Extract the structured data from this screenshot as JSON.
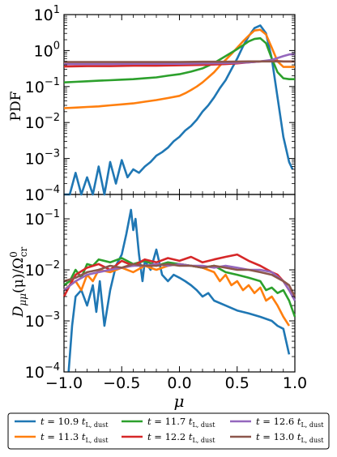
{
  "chart_data": [
    {
      "type": "line",
      "ylabel": "PDF",
      "yscale": "log",
      "xlim": [
        -1.0,
        1.0
      ],
      "ylim": [
        0.0001,
        10
      ],
      "x_ticks": [
        "−1.0",
        "−0.5",
        "0.0",
        "0.5",
        "1.0"
      ],
      "y_ticks": [
        {
          "base": "10",
          "exp": "1"
        },
        {
          "base": "10",
          "exp": "0"
        },
        {
          "base": "10",
          "exp": "-1"
        },
        {
          "base": "10",
          "exp": "-2"
        },
        {
          "base": "10",
          "exp": "-3"
        },
        {
          "base": "10",
          "exp": "-4"
        }
      ],
      "series": [
        {
          "name": "t = 10.9 t_L,dust",
          "color": "#1f77b4",
          "x": [
            -1.0,
            -0.95,
            -0.9,
            -0.85,
            -0.8,
            -0.75,
            -0.7,
            -0.65,
            -0.6,
            -0.55,
            -0.5,
            -0.45,
            -0.4,
            -0.35,
            -0.3,
            -0.25,
            -0.2,
            -0.15,
            -0.1,
            -0.05,
            0.0,
            0.05,
            0.1,
            0.15,
            0.2,
            0.25,
            0.3,
            0.35,
            0.4,
            0.45,
            0.5,
            0.55,
            0.6,
            0.65,
            0.7,
            0.75,
            0.8,
            0.85,
            0.9,
            0.95,
            0.98
          ],
          "y": [
            0.0001,
            0.0001,
            0.0004,
            0.0001,
            0.0003,
            0.0001,
            0.0006,
            0.0001,
            0.0008,
            0.0002,
            0.0009,
            0.0003,
            0.0005,
            0.0004,
            0.0006,
            0.0008,
            0.0012,
            0.0015,
            0.002,
            0.003,
            0.004,
            0.006,
            0.008,
            0.012,
            0.02,
            0.03,
            0.05,
            0.09,
            0.15,
            0.3,
            0.6,
            1.3,
            2.5,
            4.2,
            5.0,
            3.0,
            0.6,
            0.05,
            0.004,
            0.0008,
            0.0005
          ]
        },
        {
          "name": "t = 11.3 t_L,dust",
          "color": "#ff7f0e",
          "x": [
            -1.0,
            -0.9,
            -0.8,
            -0.7,
            -0.6,
            -0.5,
            -0.4,
            -0.3,
            -0.2,
            -0.1,
            0.0,
            0.05,
            0.1,
            0.15,
            0.2,
            0.25,
            0.3,
            0.35,
            0.4,
            0.45,
            0.5,
            0.55,
            0.6,
            0.65,
            0.7,
            0.75,
            0.8,
            0.85,
            0.9,
            0.95,
            1.0
          ],
          "y": [
            0.025,
            0.026,
            0.027,
            0.028,
            0.03,
            0.032,
            0.034,
            0.038,
            0.042,
            0.048,
            0.055,
            0.065,
            0.08,
            0.1,
            0.13,
            0.18,
            0.25,
            0.38,
            0.55,
            0.8,
            1.2,
            1.8,
            2.6,
            3.6,
            3.8,
            2.8,
            1.2,
            0.5,
            0.35,
            0.35,
            0.35
          ]
        },
        {
          "name": "t = 11.7 t_L,dust",
          "color": "#2ca02c",
          "x": [
            -1.0,
            -0.9,
            -0.8,
            -0.7,
            -0.6,
            -0.5,
            -0.4,
            -0.3,
            -0.2,
            -0.1,
            0.0,
            0.1,
            0.2,
            0.3,
            0.4,
            0.5,
            0.55,
            0.6,
            0.65,
            0.7,
            0.75,
            0.8,
            0.85,
            0.9,
            0.95,
            1.0
          ],
          "y": [
            0.13,
            0.135,
            0.14,
            0.145,
            0.15,
            0.155,
            0.16,
            0.17,
            0.18,
            0.2,
            0.22,
            0.26,
            0.32,
            0.45,
            0.7,
            1.1,
            1.4,
            1.8,
            2.1,
            2.2,
            1.6,
            0.6,
            0.25,
            0.17,
            0.16,
            0.16
          ]
        },
        {
          "name": "t = 12.2 t_L,dust",
          "color": "#d62728",
          "x": [
            -1.0,
            -0.8,
            -0.6,
            -0.4,
            -0.2,
            0.0,
            0.2,
            0.4,
            0.5,
            0.6,
            0.7,
            0.8,
            0.9,
            1.0
          ],
          "y": [
            0.36,
            0.37,
            0.37,
            0.38,
            0.38,
            0.39,
            0.4,
            0.42,
            0.44,
            0.47,
            0.5,
            0.52,
            0.5,
            0.5
          ]
        },
        {
          "name": "t = 12.6 t_L,dust",
          "color": "#9467bd",
          "x": [
            -1.0,
            -0.8,
            -0.6,
            -0.4,
            -0.2,
            0.0,
            0.2,
            0.4,
            0.5,
            0.6,
            0.7,
            0.8,
            0.85,
            0.9,
            0.95,
            1.0
          ],
          "y": [
            0.42,
            0.42,
            0.42,
            0.43,
            0.43,
            0.43,
            0.44,
            0.45,
            0.46,
            0.47,
            0.5,
            0.55,
            0.62,
            0.7,
            0.78,
            0.8
          ]
        },
        {
          "name": "t = 13.0 t_L,dust",
          "color": "#8c564b",
          "x": [
            -1.0,
            -0.8,
            -0.6,
            -0.4,
            -0.2,
            0.0,
            0.2,
            0.4,
            0.6,
            0.8,
            1.0
          ],
          "y": [
            0.48,
            0.48,
            0.48,
            0.48,
            0.48,
            0.48,
            0.49,
            0.49,
            0.5,
            0.5,
            0.5
          ]
        }
      ]
    },
    {
      "type": "line",
      "xlabel": "μ",
      "ylabel": "D_μμ(μ)/Ω⁰_cr",
      "yscale": "log",
      "xlim": [
        -1.0,
        1.0
      ],
      "ylim": [
        0.0001,
        0.3
      ],
      "x_ticks": [
        "−1.0",
        "−0.5",
        "0.0",
        "0.5",
        "1.0"
      ],
      "y_ticks": [
        {
          "base": "10",
          "exp": "-1"
        },
        {
          "base": "10",
          "exp": "-2"
        },
        {
          "base": "10",
          "exp": "-3"
        },
        {
          "base": "10",
          "exp": "-4"
        }
      ],
      "series": [
        {
          "name": "t = 10.9 t_L,dust",
          "color": "#1f77b4",
          "x": [
            -0.96,
            -0.93,
            -0.9,
            -0.85,
            -0.8,
            -0.75,
            -0.72,
            -0.69,
            -0.65,
            -0.6,
            -0.55,
            -0.5,
            -0.46,
            -0.42,
            -0.4,
            -0.38,
            -0.35,
            -0.32,
            -0.3,
            -0.25,
            -0.2,
            -0.15,
            -0.1,
            -0.05,
            0.0,
            0.05,
            0.1,
            0.15,
            0.2,
            0.25,
            0.3,
            0.4,
            0.5,
            0.6,
            0.7,
            0.8,
            0.85,
            0.9,
            0.95
          ],
          "y": [
            0.0001,
            0.0008,
            0.003,
            0.004,
            0.002,
            0.005,
            0.0015,
            0.006,
            0.0008,
            0.004,
            0.012,
            0.02,
            0.05,
            0.15,
            0.06,
            0.1,
            0.02,
            0.006,
            0.015,
            0.01,
            0.025,
            0.008,
            0.006,
            0.008,
            0.007,
            0.006,
            0.005,
            0.004,
            0.003,
            0.0035,
            0.0025,
            0.002,
            0.0016,
            0.0014,
            0.0012,
            0.001,
            0.0008,
            0.0007,
            0.00022
          ]
        },
        {
          "name": "t = 11.3 t_L,dust",
          "color": "#ff7f0e",
          "x": [
            -1.0,
            -0.95,
            -0.9,
            -0.85,
            -0.8,
            -0.75,
            -0.7,
            -0.6,
            -0.5,
            -0.4,
            -0.3,
            -0.2,
            -0.1,
            0.0,
            0.1,
            0.2,
            0.3,
            0.35,
            0.4,
            0.45,
            0.5,
            0.55,
            0.6,
            0.65,
            0.7,
            0.75,
            0.8,
            0.85,
            0.9,
            0.95
          ],
          "y": [
            0.004,
            0.005,
            0.006,
            0.004,
            0.008,
            0.006,
            0.01,
            0.009,
            0.011,
            0.009,
            0.012,
            0.01,
            0.012,
            0.013,
            0.012,
            0.011,
            0.009,
            0.006,
            0.008,
            0.005,
            0.006,
            0.004,
            0.005,
            0.0035,
            0.0045,
            0.0025,
            0.003,
            0.002,
            0.0012,
            0.0008
          ]
        },
        {
          "name": "t = 11.7 t_L,dust",
          "color": "#2ca02c",
          "x": [
            -1.0,
            -0.95,
            -0.9,
            -0.85,
            -0.8,
            -0.75,
            -0.7,
            -0.6,
            -0.5,
            -0.4,
            -0.3,
            -0.2,
            -0.1,
            0.0,
            0.1,
            0.2,
            0.3,
            0.4,
            0.5,
            0.6,
            0.7,
            0.75,
            0.8,
            0.85,
            0.9,
            0.95,
            1.0
          ],
          "y": [
            0.005,
            0.006,
            0.01,
            0.007,
            0.013,
            0.012,
            0.016,
            0.014,
            0.017,
            0.013,
            0.015,
            0.012,
            0.014,
            0.013,
            0.012,
            0.011,
            0.012,
            0.009,
            0.008,
            0.007,
            0.006,
            0.004,
            0.0045,
            0.0035,
            0.004,
            0.0025,
            0.0012
          ]
        },
        {
          "name": "t = 12.2 t_L,dust",
          "color": "#d62728",
          "x": [
            -1.0,
            -0.95,
            -0.9,
            -0.8,
            -0.7,
            -0.6,
            -0.5,
            -0.4,
            -0.3,
            -0.2,
            -0.1,
            0.0,
            0.1,
            0.2,
            0.3,
            0.4,
            0.5,
            0.6,
            0.7,
            0.8,
            0.85,
            0.9,
            0.95,
            1.0
          ],
          "y": [
            0.003,
            0.005,
            0.008,
            0.011,
            0.013,
            0.01,
            0.015,
            0.012,
            0.016,
            0.014,
            0.017,
            0.015,
            0.018,
            0.014,
            0.016,
            0.018,
            0.02,
            0.015,
            0.012,
            0.009,
            0.008,
            0.006,
            0.004,
            0.003
          ]
        },
        {
          "name": "t = 12.6 t_L,dust",
          "color": "#9467bd",
          "x": [
            -1.0,
            -0.9,
            -0.8,
            -0.7,
            -0.6,
            -0.5,
            -0.4,
            -0.3,
            -0.2,
            -0.1,
            0.0,
            0.1,
            0.2,
            0.3,
            0.4,
            0.5,
            0.6,
            0.7,
            0.8,
            0.9,
            0.95,
            1.0
          ],
          "y": [
            0.004,
            0.006,
            0.008,
            0.009,
            0.01,
            0.011,
            0.012,
            0.012,
            0.013,
            0.012,
            0.013,
            0.012,
            0.012,
            0.011,
            0.012,
            0.011,
            0.01,
            0.01,
            0.009,
            0.006,
            0.004,
            0.0025
          ]
        },
        {
          "name": "t = 13.0 t_L,dust",
          "color": "#8c564b",
          "x": [
            -1.0,
            -0.9,
            -0.8,
            -0.7,
            -0.6,
            -0.5,
            -0.4,
            -0.3,
            -0.2,
            -0.1,
            0.0,
            0.1,
            0.2,
            0.3,
            0.4,
            0.5,
            0.6,
            0.7,
            0.8,
            0.9,
            0.95,
            1.0
          ],
          "y": [
            0.006,
            0.007,
            0.009,
            0.01,
            0.012,
            0.011,
            0.013,
            0.012,
            0.012,
            0.013,
            0.012,
            0.012,
            0.011,
            0.012,
            0.011,
            0.01,
            0.01,
            0.009,
            0.008,
            0.006,
            0.005,
            0.003
          ]
        }
      ]
    }
  ],
  "legend": {
    "placement": "bottom",
    "entries": [
      {
        "coef": "10.9",
        "color": "#1f77b4"
      },
      {
        "coef": "11.3",
        "color": "#ff7f0e"
      },
      {
        "coef": "11.7",
        "color": "#2ca02c"
      },
      {
        "coef": "12.2",
        "color": "#d62728"
      },
      {
        "coef": "12.6",
        "color": "#9467bd"
      },
      {
        "coef": "13.0",
        "color": "#8c564b"
      }
    ]
  },
  "labels": {
    "top_ylabel": "PDF",
    "bottom_ylabel_main": "D",
    "bottom_ylabel_sub": "μμ",
    "bottom_ylabel_mid": "(μ)/Ω",
    "bottom_ylabel_sup": "0",
    "bottom_ylabel_sub2": "cr",
    "xlabel": "μ"
  }
}
